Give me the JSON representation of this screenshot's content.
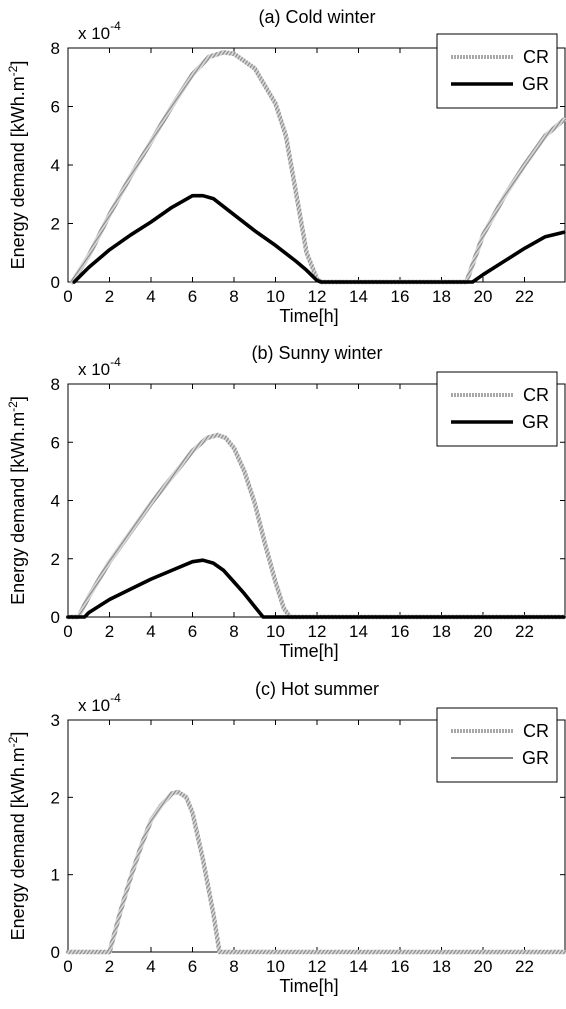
{
  "chart_data": [
    {
      "type": "line",
      "title": "(a) Cold winter",
      "xlabel": "Time[h]",
      "ylabel": "Energy demand [kWh.m",
      "ylabel_sup": "-2",
      "ylabel_close": "]",
      "exponent": "x 10",
      "exponent_sup": "-4",
      "xlim": [
        0,
        24
      ],
      "ylim": [
        0,
        8
      ],
      "xticks": [
        0,
        2,
        4,
        6,
        8,
        10,
        12,
        14,
        16,
        18,
        20,
        22
      ],
      "yticks": [
        0,
        2,
        4,
        6,
        8
      ],
      "legend_position": "top-right",
      "series": [
        {
          "name": "CR",
          "style": "hatched-gray",
          "x": [
            0.2,
            1,
            2,
            3,
            4,
            5,
            6,
            6.8,
            7.5,
            8,
            9,
            10,
            10.5,
            11,
            11.5,
            12,
            12.2,
            19.2,
            20,
            21,
            22,
            23,
            23.9
          ],
          "y": [
            0,
            0.9,
            2.3,
            3.6,
            4.8,
            6.0,
            7.1,
            7.7,
            7.85,
            7.8,
            7.3,
            6.1,
            5.0,
            3.0,
            1.0,
            0.1,
            0,
            0,
            1.6,
            2.9,
            4.0,
            5.0,
            5.55
          ]
        },
        {
          "name": "GR",
          "style": "thick-black",
          "x": [
            0.3,
            1,
            2,
            3,
            4,
            5,
            6,
            6.5,
            7,
            8,
            9,
            10,
            11,
            11.5,
            12,
            12.2,
            19.5,
            20,
            21,
            22,
            23,
            23.9
          ],
          "y": [
            0,
            0.5,
            1.1,
            1.6,
            2.05,
            2.55,
            2.95,
            2.95,
            2.85,
            2.3,
            1.75,
            1.25,
            0.7,
            0.4,
            0.05,
            0,
            0,
            0.25,
            0.7,
            1.15,
            1.55,
            1.7
          ]
        }
      ]
    },
    {
      "type": "line",
      "title": "(b) Sunny winter",
      "xlabel": "Time[h]",
      "ylabel": "Energy demand [kWh.m",
      "ylabel_sup": "-2",
      "ylabel_close": "]",
      "exponent": "x 10",
      "exponent_sup": "-4",
      "xlim": [
        0,
        24
      ],
      "ylim": [
        0,
        8
      ],
      "xticks": [
        0,
        2,
        4,
        6,
        8,
        10,
        12,
        14,
        16,
        18,
        20,
        22
      ],
      "yticks": [
        0,
        2,
        4,
        6,
        8
      ],
      "legend_position": "top-right",
      "series": [
        {
          "name": "CR",
          "style": "hatched-gray",
          "x": [
            0,
            0.5,
            1,
            2,
            3,
            4,
            5,
            6,
            6.7,
            7.2,
            7.6,
            8,
            8.5,
            9,
            9.5,
            10,
            10.4,
            10.7,
            23.9
          ],
          "y": [
            0,
            0,
            0.7,
            1.9,
            2.9,
            3.9,
            4.8,
            5.7,
            6.15,
            6.25,
            6.15,
            5.8,
            5.0,
            3.9,
            2.5,
            1.2,
            0.3,
            0,
            0
          ]
        },
        {
          "name": "GR",
          "style": "thick-black",
          "x": [
            0,
            0.8,
            1,
            2,
            3,
            4,
            5,
            6,
            6.5,
            7,
            7.5,
            8,
            8.5,
            9,
            9.4,
            23.9
          ],
          "y": [
            0,
            0,
            0.15,
            0.6,
            0.95,
            1.3,
            1.6,
            1.9,
            1.95,
            1.85,
            1.6,
            1.2,
            0.8,
            0.35,
            0,
            0
          ]
        }
      ]
    },
    {
      "type": "line",
      "title": "(c) Hot summer",
      "xlabel": "Time[h]",
      "ylabel": "Energy demand [kWh.m",
      "ylabel_sup": "-2",
      "ylabel_close": "]",
      "exponent": "x 10",
      "exponent_sup": "-4",
      "xlim": [
        0,
        24
      ],
      "ylim": [
        0,
        3
      ],
      "xticks": [
        0,
        2,
        4,
        6,
        8,
        10,
        12,
        14,
        16,
        18,
        20,
        22
      ],
      "yticks": [
        0,
        1,
        2,
        3
      ],
      "legend_position": "top-right",
      "series": [
        {
          "name": "CR",
          "style": "hatched-gray",
          "x": [
            0,
            2,
            2.5,
            3,
            3.5,
            4,
            4.5,
            5,
            5.3,
            5.7,
            6,
            6.5,
            7,
            7.3,
            23.9
          ],
          "y": [
            0,
            0,
            0.5,
            0.95,
            1.35,
            1.7,
            1.9,
            2.05,
            2.07,
            2.0,
            1.8,
            1.2,
            0.5,
            0,
            0
          ]
        },
        {
          "name": "GR",
          "style": "thin-black",
          "x": [],
          "y": []
        }
      ]
    }
  ]
}
